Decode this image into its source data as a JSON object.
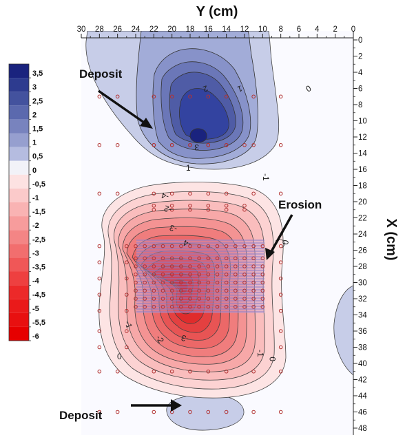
{
  "chart_data": {
    "type": "contour",
    "xlabel": "Y (cm)",
    "ylabel": "X (cm)",
    "x_ticks": [
      30,
      28,
      26,
      24,
      22,
      20,
      18,
      16,
      14,
      12,
      10,
      8,
      6,
      4,
      2,
      0
    ],
    "y_ticks": [
      0,
      2,
      4,
      6,
      8,
      10,
      12,
      14,
      16,
      18,
      20,
      22,
      24,
      26,
      28,
      30,
      32,
      34,
      36,
      38,
      40,
      42,
      44,
      46,
      48
    ],
    "xlim": [
      30,
      0
    ],
    "ylim": [
      0,
      48
    ],
    "colorbar": {
      "labels": [
        "3,5",
        "3",
        "2,5",
        "2",
        "1,5",
        "1",
        "0,5",
        "0",
        "-0,5",
        "-1",
        "-1,5",
        "-2",
        "-2,5",
        "-3",
        "-3,5",
        "-4",
        "-4,5",
        "-5",
        "-5,5",
        "-6"
      ],
      "colors": [
        "#1a237e",
        "#2d3b8f",
        "#43529e",
        "#5b69ae",
        "#7883be",
        "#969fcf",
        "#b5bce0",
        "#f2f2f8",
        "#fde2e2",
        "#fbcaca",
        "#f9b3b3",
        "#f79c9c",
        "#f48585",
        "#f26e6e",
        "#f05757",
        "#ee4040",
        "#ec2929",
        "#ea1a1a",
        "#e81010",
        "#e60000"
      ]
    },
    "contour_labels": [
      "1",
      "1",
      "2",
      "3",
      "0",
      "0",
      "0",
      "0",
      "-1",
      "-1",
      "-1",
      "-2",
      "-2",
      "-3",
      "-3",
      "-4",
      "-4"
    ],
    "annotations": [
      "Deposit",
      "Erosion",
      "Deposit"
    ],
    "deposits": [
      {
        "label": "Deposit",
        "peak": 3.5,
        "center_y": 18,
        "center_x": 12
      },
      {
        "label": "Deposit",
        "peak": 0.5,
        "center_y": 17,
        "center_x": 46
      }
    ],
    "erosion": {
      "label": "Erosion",
      "min": -6,
      "center_y": 18,
      "center_x": 30
    }
  }
}
